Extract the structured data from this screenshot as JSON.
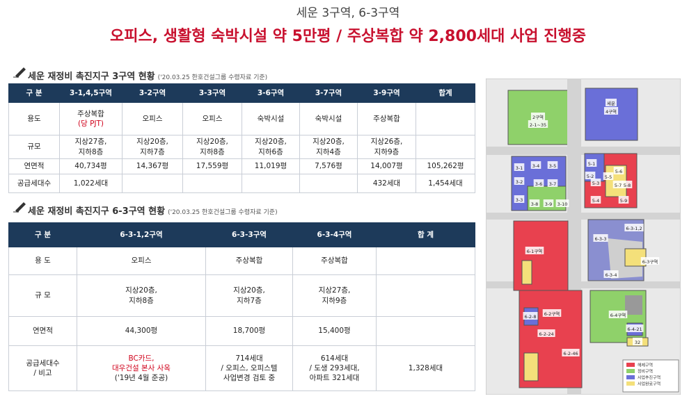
{
  "header": {
    "title": "세운 3구역, 6-3구역",
    "subtitle": "오피스, 생활형 숙박시설 약 5만평 / 주상복합 약 2,800세대 사업 진행중"
  },
  "sections": [
    {
      "heading": "세운 재정비 촉진지구 3구역 현황",
      "note": "('20.03.25 한호건설그룹 수령자료 기준)",
      "table": {
        "header": [
          "구 분",
          "3-1,4,5구역",
          "3-2구역",
          "3-3구역",
          "3-6구역",
          "3-7구역",
          "3-9구역",
          "합계"
        ],
        "rows": [
          [
            "용도",
            [
              "주상복합",
              {
                "text": "(당 PJT)",
                "color": "#d0021b"
              }
            ],
            "오피스",
            "오피스",
            "숙박시설",
            "숙박시설",
            "주상복합",
            null
          ],
          [
            "규모",
            [
              "지상27층,",
              "지하8층"
            ],
            [
              "지상20층,",
              "지하7층"
            ],
            [
              "지상20층,",
              "지하8층"
            ],
            [
              "지상20층,",
              "지하6층"
            ],
            [
              "지상20층,",
              "지하4층"
            ],
            [
              "지상26층,",
              "지하9층"
            ],
            null
          ],
          [
            "연면적",
            "40,734평",
            "14,367평",
            "17,559평",
            "11,019평",
            "7,576평",
            "14,007평",
            "105,262평"
          ],
          [
            "공급세대수",
            "1,022세대",
            null,
            null,
            null,
            null,
            "432세대",
            "1,454세대"
          ]
        ]
      }
    },
    {
      "heading": "세운 재정비 촉진지구 6-3구역 현황",
      "note": "('20.03.25 한호건설그룹 수령자료 기준)",
      "table": {
        "header": [
          "구 분",
          "6-3-1,2구역",
          "6-3-3구역",
          "6-3-4구역",
          "합 계"
        ],
        "rows": [
          [
            "용 도",
            "오피스",
            "주상복합",
            "주상복합",
            null
          ],
          [
            "규 모",
            [
              "지상20층,",
              "지하8층"
            ],
            [
              "지상20층,",
              "지하7층"
            ],
            [
              "지상27층,",
              "지하9층"
            ],
            null
          ],
          [
            "연면적",
            "44,300평",
            "18,700평",
            "15,400평",
            null
          ],
          [
            [
              "공급세대수",
              "/ 비고"
            ],
            [
              {
                "text": "BC카드,",
                "color": "#d0021b"
              },
              {
                "text": "대우건설 본사 사옥",
                "color": "#d0021b"
              },
              "('19년 4월 준공)"
            ],
            [
              "714세대",
              "/ 오피스, 오피스텔",
              "사업변경 검토 중"
            ],
            [
              "614세대",
              "/ 도생 293세대,",
              "아파트 321세대"
            ],
            "1,328세대"
          ]
        ]
      }
    }
  ],
  "map": {
    "labels": [
      "2구역",
      "2-1~35",
      "세운",
      "4구역",
      "3-1",
      "3-2",
      "3-3",
      "3-4",
      "3-5",
      "3-6",
      "3-7",
      "3-8",
      "3-9",
      "3-10",
      "5-1",
      "5-2",
      "5-3",
      "5-4",
      "5-5",
      "5-6",
      "5-7",
      "5-8",
      "5-9",
      "6-1구역",
      "6-2구역",
      "6-3-1,2",
      "6-3-3",
      "6-3-4",
      "6-3구역",
      "6-4구역",
      "6-2-8",
      "6-2-24",
      "6-2-46",
      "6-4-21",
      "32"
    ],
    "legend": [
      {
        "text": "해제구역",
        "color": "#e8414f"
      },
      {
        "text": "정비구역",
        "color": "#8fd16a"
      },
      {
        "text": "사업추진구역",
        "color": "#6a6fd8"
      },
      {
        "text": "사업완료구역",
        "color": "#f4e07a"
      }
    ]
  }
}
